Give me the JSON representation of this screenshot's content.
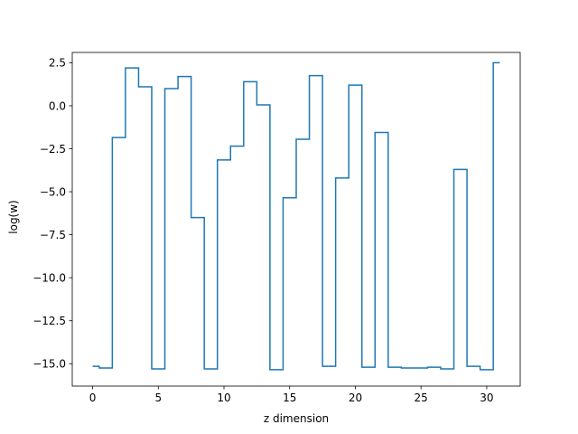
{
  "chart_data": {
    "type": "line",
    "drawstyle": "steps-mid",
    "title": "",
    "xlabel": "z dimension",
    "ylabel": "log(w)",
    "xlim": [
      -1.55,
      32.55
    ],
    "ylim": [
      -16.3,
      3.1
    ],
    "xticks": [
      0,
      5,
      10,
      15,
      20,
      25,
      30
    ],
    "yticks": [
      2.5,
      0.0,
      -2.5,
      -5.0,
      -7.5,
      -10.0,
      -12.5,
      -15.0
    ],
    "ytick_labels": [
      "2.5",
      "0.0",
      "−2.5",
      "−5.0",
      "−7.5",
      "−10.0",
      "−12.5",
      "−15.0"
    ],
    "grid": false,
    "line_color": "#1f77b4",
    "series": [
      {
        "x": [
          0,
          1,
          2,
          3,
          4,
          5,
          6,
          7,
          8,
          9,
          10,
          11,
          12,
          13,
          14,
          15,
          16,
          17,
          18,
          19,
          20,
          21,
          22,
          23,
          24,
          25,
          26,
          27,
          28,
          29,
          30,
          31
        ],
        "values": [
          -15.15,
          -15.25,
          -1.85,
          2.2,
          1.1,
          -15.3,
          1.0,
          1.7,
          -6.5,
          -15.3,
          -3.15,
          -2.35,
          1.4,
          0.05,
          -15.35,
          -5.35,
          -1.95,
          1.75,
          -15.15,
          -4.2,
          1.2,
          -15.2,
          -1.55,
          -15.2,
          -15.25,
          -15.25,
          -15.2,
          -15.3,
          -3.7,
          -15.15,
          -15.35,
          2.5
        ]
      }
    ]
  }
}
